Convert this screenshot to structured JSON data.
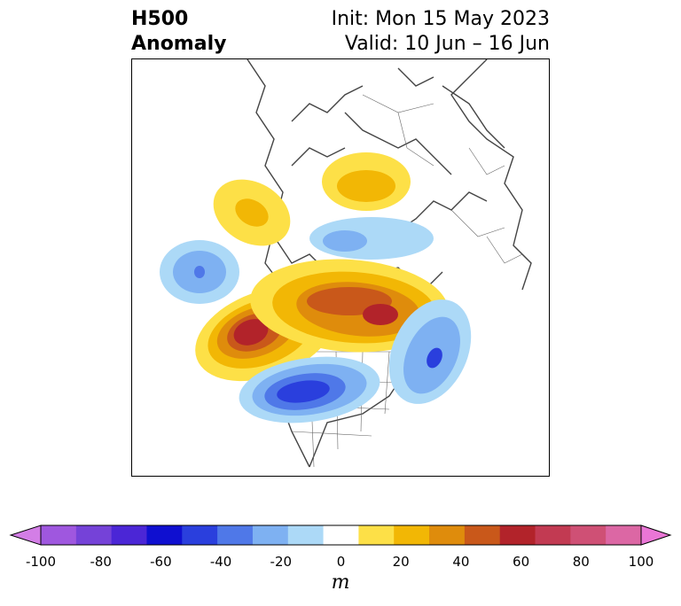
{
  "header": {
    "title_line1": "H500",
    "title_line2": "Anomaly",
    "init_text": "Init: Mon 15 May 2023",
    "valid_text": "Valid: 10 Jun – 16 Jun"
  },
  "colorbar": {
    "units": "m",
    "tick_labels": [
      "-100",
      "-80",
      "-60",
      "-40",
      "-20",
      "0",
      "20",
      "40",
      "60",
      "80",
      "100"
    ],
    "colors": [
      "#d37ee6",
      "#9f57df",
      "#7542d8",
      "#4b26d6",
      "#0f0fd0",
      "#2a3fdd",
      "#4f78e8",
      "#7eb1f2",
      "#acd9f7",
      "#ffffff",
      "#fde047",
      "#f2b705",
      "#df8c0c",
      "#c9581a",
      "#b2232a",
      "#c23a52",
      "#cf5075",
      "#dc67a4",
      "#ea76d6"
    ]
  },
  "map": {
    "features": [
      {
        "name": "anomaly-north-pacific-low",
        "sign": "negative"
      },
      {
        "name": "anomaly-alaska-ridge",
        "sign": "positive"
      },
      {
        "name": "anomaly-arctic-ridge",
        "sign": "positive"
      },
      {
        "name": "anomaly-siberia-low",
        "sign": "negative"
      },
      {
        "name": "anomaly-greenland-ridge",
        "sign": "positive"
      },
      {
        "name": "anomaly-west-canada-ridge",
        "sign": "positive"
      },
      {
        "name": "anomaly-north-atlantic-low",
        "sign": "negative"
      },
      {
        "name": "anomaly-central-us-low",
        "sign": "negative"
      }
    ]
  }
}
